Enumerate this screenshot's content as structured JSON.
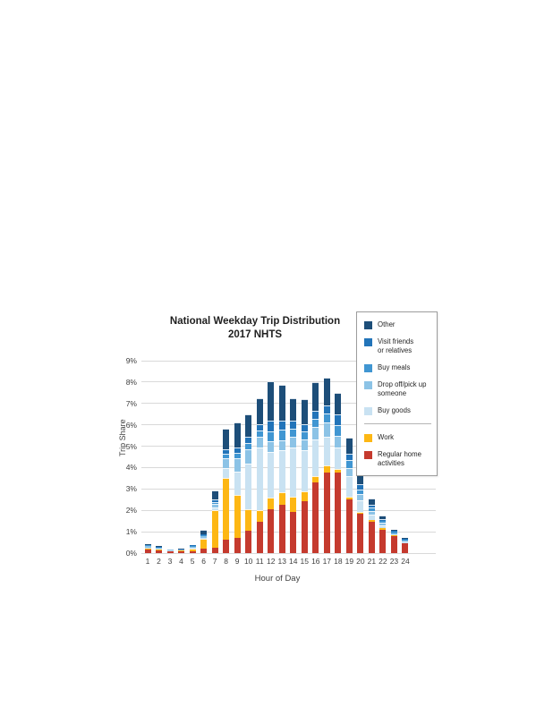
{
  "chart_data": {
    "type": "bar",
    "stacked": true,
    "title": "National Weekday Trip Distribution",
    "subtitle": "2017 NHTS",
    "xlabel": "Hour of Day",
    "ylabel": "Trip Share",
    "ylim": [
      0,
      9
    ],
    "ytick_labels": [
      "0%",
      "1%",
      "2%",
      "3%",
      "4%",
      "5%",
      "6%",
      "7%",
      "8%",
      "9%"
    ],
    "categories": [
      1,
      2,
      3,
      4,
      5,
      6,
      7,
      8,
      9,
      10,
      11,
      12,
      13,
      14,
      15,
      16,
      17,
      18,
      19,
      20,
      21,
      22,
      23,
      24
    ],
    "grid": true,
    "legend_position": "upper right",
    "series": [
      {
        "name": "Regular home activities",
        "color": "#c53a2e",
        "values": [
          0.15,
          0.12,
          0.08,
          0.08,
          0.1,
          0.2,
          0.26,
          0.61,
          0.72,
          1.03,
          1.47,
          2.07,
          2.25,
          1.93,
          2.44,
          3.3,
          3.78,
          3.75,
          2.5,
          1.84,
          1.48,
          1.1,
          0.8,
          0.45
        ]
      },
      {
        "name": "Work",
        "color": "#fdb714",
        "values": [
          0.04,
          0.03,
          0.02,
          0.03,
          0.12,
          0.45,
          1.74,
          2.9,
          1.99,
          1.01,
          0.56,
          0.51,
          0.61,
          0.7,
          0.46,
          0.3,
          0.32,
          0.17,
          0.14,
          0.1,
          0.08,
          0.07,
          0.02,
          0.03
        ]
      },
      {
        "name": "Buy goods",
        "color": "#c9e2f2",
        "values": [
          0.08,
          0.05,
          0.03,
          0.03,
          0.05,
          0.08,
          0.15,
          0.45,
          1.11,
          2.16,
          2.9,
          2.17,
          1.94,
          2.31,
          1.93,
          1.73,
          1.35,
          1.02,
          0.94,
          0.53,
          0.24,
          0.14,
          0.08,
          0.05
        ]
      },
      {
        "name": "Drop off/pick up someone",
        "color": "#8cc3e6",
        "values": [
          0.05,
          0.04,
          0.02,
          0.02,
          0.04,
          0.07,
          0.14,
          0.46,
          0.63,
          0.67,
          0.5,
          0.5,
          0.48,
          0.49,
          0.5,
          0.56,
          0.67,
          0.55,
          0.38,
          0.3,
          0.18,
          0.1,
          0.04,
          0.04
        ]
      },
      {
        "name": "Buy meals",
        "color": "#4096d2",
        "values": [
          0.04,
          0.03,
          0.01,
          0.01,
          0.03,
          0.05,
          0.09,
          0.24,
          0.25,
          0.3,
          0.32,
          0.45,
          0.49,
          0.37,
          0.36,
          0.41,
          0.42,
          0.49,
          0.38,
          0.22,
          0.14,
          0.08,
          0.06,
          0.07
        ]
      },
      {
        "name": "Visit friends or relatives",
        "color": "#2274b9",
        "values": [
          0.02,
          0.02,
          0.01,
          0.01,
          0.02,
          0.05,
          0.12,
          0.21,
          0.24,
          0.28,
          0.3,
          0.5,
          0.42,
          0.4,
          0.35,
          0.34,
          0.35,
          0.49,
          0.3,
          0.25,
          0.14,
          0.1,
          0.03,
          0.04
        ]
      },
      {
        "name": "Other",
        "color": "#1d4e79",
        "values": [
          0.04,
          0.03,
          0.02,
          0.02,
          0.04,
          0.2,
          0.45,
          0.97,
          1.18,
          1.06,
          1.19,
          1.83,
          1.68,
          1.04,
          1.15,
          1.34,
          1.31,
          1.02,
          0.76,
          0.41,
          0.31,
          0.17,
          0.05,
          0.04
        ]
      }
    ],
    "legend": [
      {
        "label": "Other",
        "color": "#1d4e79"
      },
      {
        "label": "Visit friends\nor relatives",
        "color": "#2274b9"
      },
      {
        "label": "Buy meals",
        "color": "#4096d2"
      },
      {
        "label": "Drop off/pick up\nsomeone",
        "color": "#8cc3e6"
      },
      {
        "label": "Buy goods",
        "color": "#c9e2f2"
      },
      {
        "label": "Work",
        "color": "#fdb714"
      },
      {
        "label": "Regular home\nactivities",
        "color": "#c53a2e"
      }
    ],
    "legend_separator_after_index": 4
  }
}
